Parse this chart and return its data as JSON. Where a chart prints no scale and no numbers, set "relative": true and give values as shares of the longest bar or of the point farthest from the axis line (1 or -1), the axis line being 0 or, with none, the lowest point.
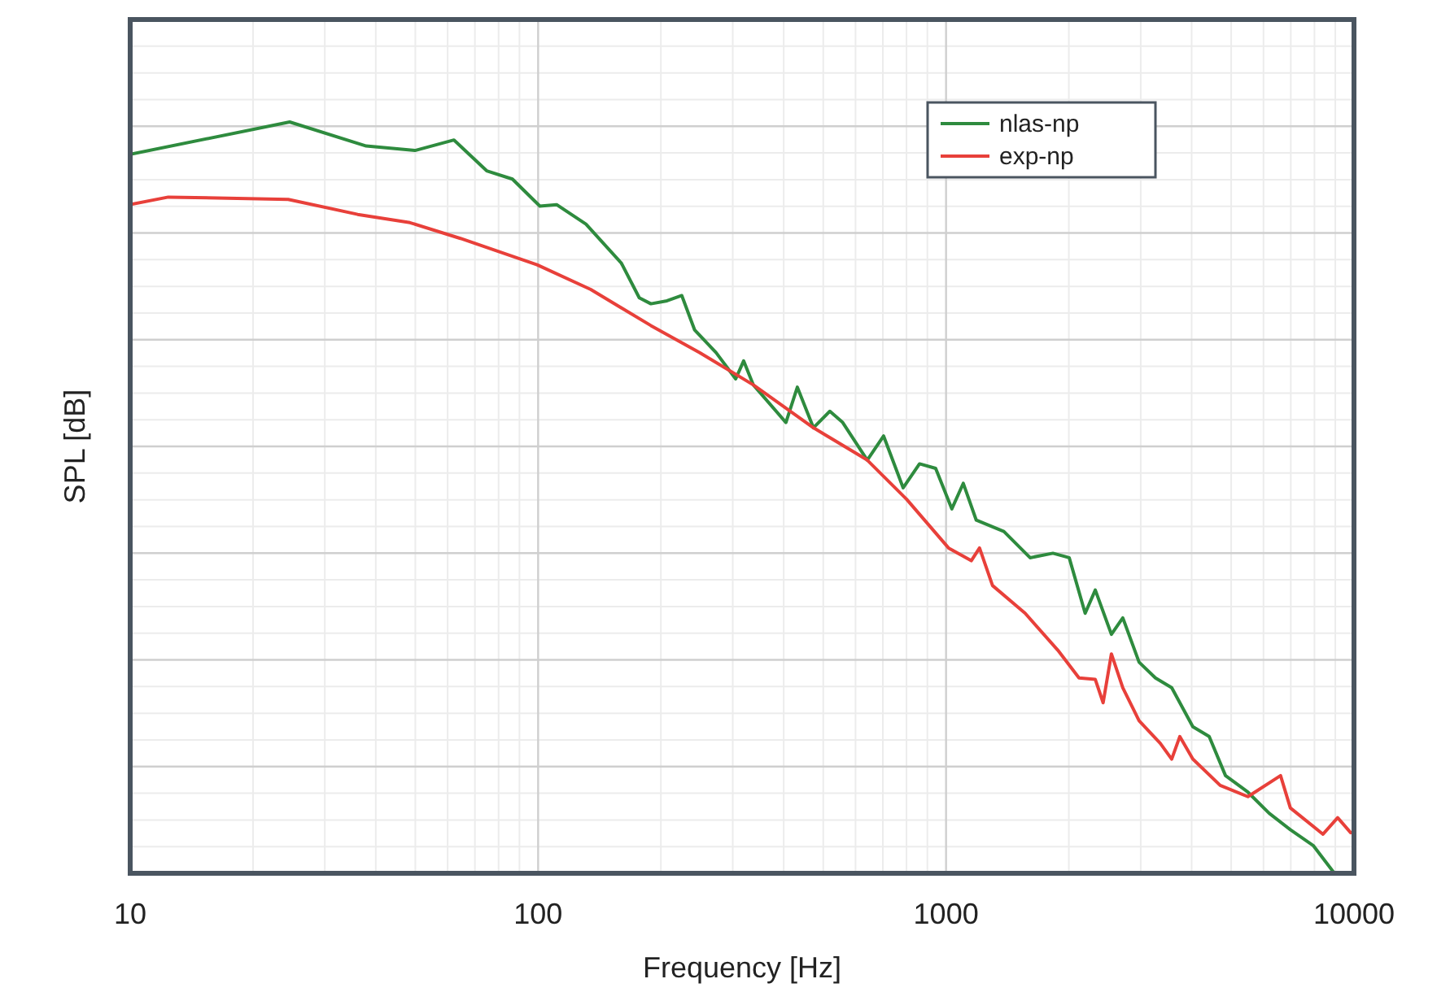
{
  "chart_data": {
    "type": "line",
    "xlabel": "Frequency [Hz]",
    "ylabel": "SPL [dB]",
    "log": "x",
    "relative": true,
    "grid": true,
    "legend": "top right",
    "xlim": [
      10,
      10000
    ],
    "xticks": [
      10,
      100,
      1000,
      10000
    ],
    "series": [
      {
        "name": "nlas-np",
        "color": "#2e8b3e",
        "x": [
          10,
          24.6,
          37.9,
          49.9,
          62.2,
          74.8,
          86.5,
          101,
          111,
          131,
          160,
          177,
          189,
          207,
          225,
          242,
          273,
          305,
          319,
          337,
          405,
          432,
          473,
          519,
          558,
          641,
          703,
          785,
          861,
          943,
          1033,
          1102,
          1186,
          1386,
          1607,
          1828,
          2004,
          2193,
          2322,
          2543,
          2712,
          2973,
          3260,
          3574,
          4027,
          4416,
          4842,
          5495,
          6194,
          6982,
          7943,
          8954
        ],
        "values": [
          0.957,
          1,
          0.968,
          0.962,
          0.976,
          0.935,
          0.924,
          0.888,
          0.89,
          0.864,
          0.812,
          0.766,
          0.758,
          0.762,
          0.769,
          0.723,
          0.693,
          0.658,
          0.682,
          0.65,
          0.6,
          0.647,
          0.593,
          0.615,
          0.6,
          0.55,
          0.582,
          0.513,
          0.545,
          0.539,
          0.485,
          0.519,
          0.47,
          0.455,
          0.42,
          0.426,
          0.42,
          0.346,
          0.377,
          0.318,
          0.34,
          0.281,
          0.26,
          0.247,
          0.195,
          0.182,
          0.13,
          0.108,
          0.08,
          0.058,
          0.037,
          0
        ]
      },
      {
        "name": "exp-np",
        "color": "#e8403a",
        "x": [
          10,
          12.4,
          24.4,
          36.1,
          48.5,
          64.5,
          99.4,
          134.6,
          189,
          249,
          337,
          473,
          641,
          800,
          1014,
          1153,
          1208,
          1300,
          1563,
          1879,
          2118,
          2322,
          2427,
          2543,
          2712,
          2973,
          3350,
          3574,
          3741,
          4027,
          4699,
          5495,
          6607,
          6982,
          8395,
          9120,
          9817
        ],
        "values": [
          0.89,
          0.9,
          0.897,
          0.877,
          0.866,
          0.845,
          0.81,
          0.777,
          0.729,
          0.693,
          0.65,
          0.593,
          0.55,
          0.498,
          0.433,
          0.416,
          0.433,
          0.383,
          0.346,
          0.297,
          0.26,
          0.258,
          0.227,
          0.292,
          0.247,
          0.203,
          0.173,
          0.152,
          0.182,
          0.152,
          0.117,
          0.102,
          0.13,
          0.087,
          0.052,
          0.074,
          0.054
        ]
      }
    ]
  }
}
